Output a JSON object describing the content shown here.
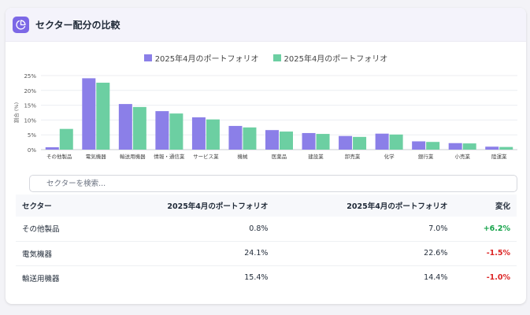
{
  "header": {
    "title": "セクター配分の比較",
    "icon": "pie-chart-icon"
  },
  "colors": {
    "series1": "#8b7fe8",
    "series2": "#6ccfa2",
    "accent": "#7c68e6",
    "positive": "#16a34a",
    "negative": "#dc2626"
  },
  "chart_data": {
    "type": "bar",
    "legend_position": "top",
    "ylabel": "割合 (%)",
    "ylim": [
      0,
      25
    ],
    "yticks": [
      "0%",
      "5%",
      "10%",
      "15%",
      "20%",
      "25%"
    ],
    "grid": true,
    "categories": [
      "その他製品",
      "電気機器",
      "輸送用機器",
      "情報・通信業",
      "サービス業",
      "機械",
      "医薬品",
      "建設業",
      "卸売業",
      "化学",
      "銀行業",
      "小売業",
      "陸運業"
    ],
    "series": [
      {
        "name": "2025年4月のポートフォリオ",
        "values": [
          0.8,
          24.1,
          15.4,
          13.0,
          10.9,
          8.0,
          6.6,
          5.6,
          4.6,
          5.4,
          2.8,
          2.2,
          1.0
        ]
      },
      {
        "name": "2025年4月のポートフォリオ",
        "values": [
          7.0,
          22.6,
          14.4,
          12.2,
          10.2,
          7.5,
          6.1,
          5.3,
          4.3,
          5.1,
          2.6,
          2.1,
          0.9
        ]
      }
    ]
  },
  "search": {
    "placeholder": "セクターを検索..."
  },
  "table": {
    "headers": [
      "セクター",
      "2025年4月のポートフォリオ",
      "2025年4月のポートフォリオ",
      "変化"
    ],
    "rows": [
      {
        "sector": "その他製品",
        "a": "0.8%",
        "b": "7.0%",
        "change": "+6.2%",
        "dir": "pos"
      },
      {
        "sector": "電気機器",
        "a": "24.1%",
        "b": "22.6%",
        "change": "-1.5%",
        "dir": "neg"
      },
      {
        "sector": "輸送用機器",
        "a": "15.4%",
        "b": "14.4%",
        "change": "-1.0%",
        "dir": "neg"
      }
    ]
  }
}
